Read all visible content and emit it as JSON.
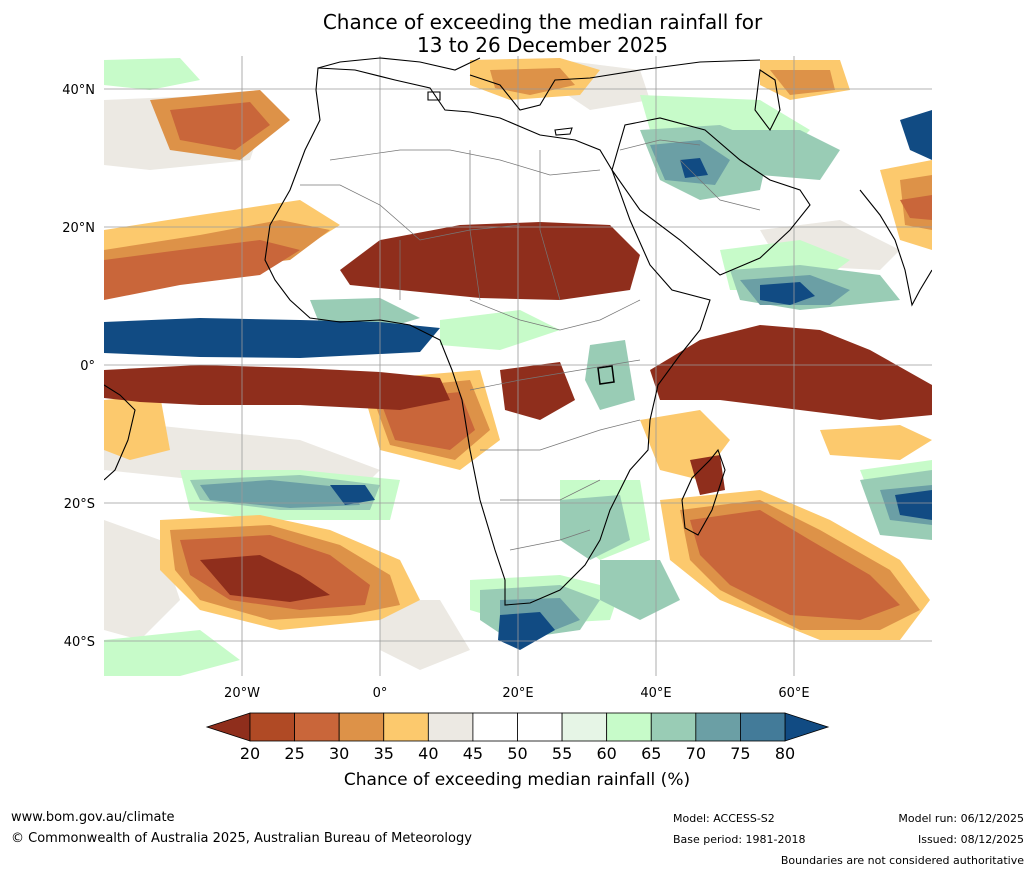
{
  "title": {
    "line1": "Chance of exceeding the median rainfall for",
    "line2": "13 to 26 December 2025"
  },
  "map": {
    "latitude_labels": [
      "40°N",
      "20°N",
      "0°",
      "20°S",
      "40°S"
    ],
    "longitude_labels": [
      "20°W",
      "0°",
      "20°E",
      "40°E",
      "60°E"
    ],
    "region": "Africa",
    "anomalies": [
      {
        "name": "dry-sahel-band",
        "category_percent": 20
      },
      {
        "name": "wet-gulf-of-guinea-band",
        "category_percent": 80
      },
      {
        "name": "dry-equatorial-atlantic-band",
        "category_percent": 20
      },
      {
        "name": "dry-indian-ocean-band",
        "category_percent": 20
      },
      {
        "name": "wet-arabian-peninsula",
        "category_percent": 70
      },
      {
        "name": "dry-south-atlantic",
        "category_percent": 25
      },
      {
        "name": "wet-southern-ocean",
        "category_percent": 75
      }
    ]
  },
  "colorbar": {
    "ticks": [
      "20",
      "25",
      "30",
      "35",
      "40",
      "45",
      "50",
      "55",
      "60",
      "65",
      "70",
      "75",
      "80"
    ],
    "colors": [
      "#8f2e1c",
      "#b04a25",
      "#c9663a",
      "#dd9248",
      "#fcc96d",
      "#ece9e3",
      "#ffffff",
      "#ffffff",
      "#e6f5e6",
      "#c7fbc9",
      "#99ccb5",
      "#6b9fa5",
      "#437b99",
      "#114b83"
    ],
    "low_color": "#8f2e1c",
    "high_color": "#114b83",
    "label": "Chance of exceeding median rainfall (%)"
  },
  "footer": {
    "website": "www.bom.gov.au/climate",
    "copyright": "© Commonwealth of Australia 2025, Australian Bureau of Meteorology",
    "model": "Model: ACCESS-S2",
    "base_period": "Base period: 1981-2018",
    "model_run": "Model run: 06/12/2025",
    "issued": "Issued: 08/12/2025",
    "disclaimer": "Boundaries are not considered authoritative"
  }
}
